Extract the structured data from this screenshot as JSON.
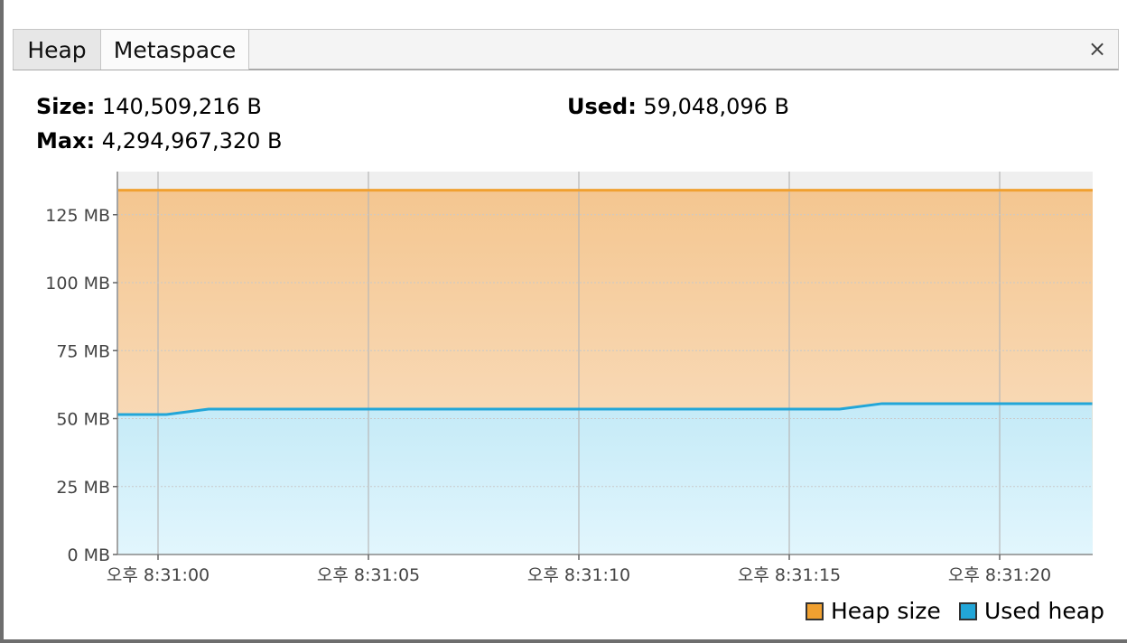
{
  "tabs": [
    {
      "label": "Heap",
      "active": true
    },
    {
      "label": "Metaspace",
      "active": false
    }
  ],
  "close_icon": "×",
  "stats": {
    "size_label": "Size:",
    "size_value": "140,509,216 B",
    "used_label": "Used:",
    "used_value": "59,048,096 B",
    "max_label": "Max:",
    "max_value": "4,294,967,320 B"
  },
  "chart_data": {
    "type": "area",
    "x_ticks": [
      "오후 8:31:00",
      "오후 8:31:05",
      "오후 8:31:10",
      "오후 8:31:15",
      "오후 8:31:20"
    ],
    "y_ticks": [
      "0 MB",
      "25 MB",
      "50 MB",
      "75 MB",
      "100 MB",
      "125 MB"
    ],
    "ylim": [
      0,
      133
    ],
    "series": [
      {
        "name": "Heap size",
        "color": "#f0a030",
        "points": [
          {
            "t": "8:30:59",
            "v": 134
          },
          {
            "t": "8:31:22.2",
            "v": 134
          }
        ]
      },
      {
        "name": "Used heap",
        "color": "#22a6d8",
        "points": [
          {
            "t": "8:30:59",
            "v": 51.5
          },
          {
            "t": "8:31:00.2",
            "v": 51.5
          },
          {
            "t": "8:31:01.2",
            "v": 53.5
          },
          {
            "t": "8:31:16.2",
            "v": 53.5
          },
          {
            "t": "8:31:17.2",
            "v": 55.5
          },
          {
            "t": "8:31:22.2",
            "v": 55.5
          }
        ]
      }
    ],
    "grid": true,
    "legend": "bottom-right"
  }
}
